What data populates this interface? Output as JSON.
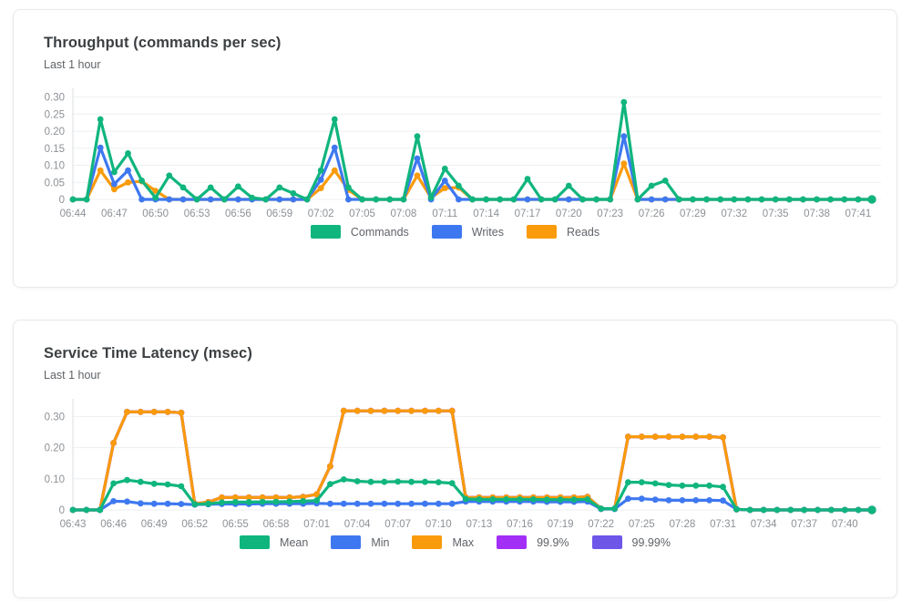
{
  "page": {
    "background": "#ffffff",
    "card_border": "#e7e9ec",
    "grid_color": "#edeff1",
    "axis_line_color": "#d9dcdf",
    "tick_text_color": "#8d9196",
    "legend_text_color": "#5f6368",
    "title_color": "#3c4043",
    "subtitle_color": "#5f6368"
  },
  "chart_data": [
    {
      "name": "throughput",
      "type": "line",
      "title": "Throughput (commands per sec)",
      "subtitle": "Last 1 hour",
      "xlabel": "",
      "ylabel": "",
      "ylim": [
        0,
        0.315
      ],
      "y_ticks": [
        0,
        0.05,
        0.1,
        0.15,
        0.2,
        0.25,
        0.3
      ],
      "y_tick_labels": [
        "0",
        "0.05",
        "0.10",
        "0.15",
        "0.20",
        "0.25",
        "0.30"
      ],
      "x_tick_interval": 3,
      "grid": true,
      "markers": true,
      "legend_position": "bottom",
      "x": [
        "06:44",
        "06:45",
        "06:46",
        "06:47",
        "06:48",
        "06:49",
        "06:50",
        "06:51",
        "06:52",
        "06:53",
        "06:54",
        "06:55",
        "06:56",
        "06:57",
        "06:58",
        "06:59",
        "07:00",
        "07:01",
        "07:02",
        "07:03",
        "07:04",
        "07:05",
        "07:06",
        "07:07",
        "07:08",
        "07:09",
        "07:10",
        "07:11",
        "07:12",
        "07:13",
        "07:14",
        "07:15",
        "07:16",
        "07:17",
        "07:18",
        "07:19",
        "07:20",
        "07:21",
        "07:22",
        "07:23",
        "07:24",
        "07:25",
        "07:26",
        "07:27",
        "07:28",
        "07:29",
        "07:30",
        "07:31",
        "07:32",
        "07:33",
        "07:34",
        "07:35",
        "07:36",
        "07:37",
        "07:38",
        "07:39",
        "07:40",
        "07:41",
        "07:42"
      ],
      "series": [
        {
          "name": "Commands",
          "color": "#10b57e",
          "values": [
            0,
            0,
            0.235,
            0.08,
            0.135,
            0.055,
            0.005,
            0.07,
            0.035,
            0,
            0.035,
            0,
            0.038,
            0.005,
            0,
            0.035,
            0.018,
            0,
            0.085,
            0.235,
            0.035,
            0,
            0,
            0,
            0,
            0.185,
            0.005,
            0.09,
            0.04,
            0,
            0,
            0,
            0,
            0.06,
            0,
            0,
            0.04,
            0,
            0,
            0,
            0.285,
            0,
            0.04,
            0.055,
            0,
            0,
            0,
            0,
            0,
            0,
            0,
            0,
            0,
            0,
            0,
            0,
            0,
            0,
            0
          ]
        },
        {
          "name": "Writes",
          "color": "#3e78f0",
          "values": [
            0,
            0,
            0.152,
            0.045,
            0.085,
            0,
            0,
            0,
            0,
            0,
            0,
            0,
            0,
            0,
            0,
            0,
            0,
            0,
            0.058,
            0.152,
            0,
            0,
            0,
            0,
            0,
            0.12,
            0,
            0.055,
            0,
            0,
            0,
            0,
            0,
            0,
            0,
            0,
            0,
            0,
            0,
            0,
            0.185,
            0,
            0,
            0,
            0,
            0,
            0,
            0,
            0,
            0,
            0,
            0,
            0,
            0,
            0,
            0,
            0,
            0,
            0
          ]
        },
        {
          "name": "Reads",
          "color": "#f99b0b",
          "values": [
            0,
            0,
            0.085,
            0.03,
            0.05,
            0.053,
            0.025,
            0,
            0,
            0,
            0,
            0,
            0,
            0,
            0,
            0,
            0,
            0,
            0.033,
            0.085,
            0.028,
            0,
            0,
            0,
            0,
            0.07,
            0.005,
            0.033,
            0.035,
            0,
            0,
            0,
            0,
            0,
            0,
            0,
            0,
            0,
            0,
            0,
            0.105,
            0,
            0,
            0,
            0,
            0,
            0,
            0,
            0,
            0,
            0,
            0,
            0,
            0,
            0,
            0,
            0,
            0,
            0
          ]
        }
      ]
    },
    {
      "name": "service-time-latency",
      "type": "line",
      "title": "Service Time Latency (msec)",
      "subtitle": "Last 1 hour",
      "xlabel": "",
      "ylabel": "",
      "ylim": [
        0,
        0.345
      ],
      "y_ticks": [
        0,
        0.1,
        0.2,
        0.3
      ],
      "y_tick_labels": [
        "0",
        "0.10",
        "0.20",
        "0.30"
      ],
      "x_tick_interval": 3,
      "grid": true,
      "markers": true,
      "legend_position": "bottom",
      "x": [
        "06:43",
        "06:44",
        "06:45",
        "06:46",
        "06:47",
        "06:48",
        "06:49",
        "06:50",
        "06:51",
        "06:52",
        "06:53",
        "06:54",
        "06:55",
        "06:56",
        "06:57",
        "06:58",
        "06:59",
        "07:00",
        "07:01",
        "07:02",
        "07:03",
        "07:04",
        "07:05",
        "07:06",
        "07:07",
        "07:08",
        "07:09",
        "07:10",
        "07:11",
        "07:12",
        "07:13",
        "07:14",
        "07:15",
        "07:16",
        "07:17",
        "07:18",
        "07:19",
        "07:20",
        "07:21",
        "07:22",
        "07:23",
        "07:24",
        "07:25",
        "07:26",
        "07:27",
        "07:28",
        "07:29",
        "07:30",
        "07:31",
        "07:32",
        "07:33",
        "07:34",
        "07:35",
        "07:36",
        "07:37",
        "07:38",
        "07:39",
        "07:40",
        "07:41",
        "07:42"
      ],
      "series": [
        {
          "name": "Mean",
          "color": "#10b57e",
          "values": [
            0,
            0,
            0,
            0.085,
            0.096,
            0.09,
            0.084,
            0.082,
            0.076,
            0.018,
            0.02,
            0.024,
            0.025,
            0.025,
            0.026,
            0.026,
            0.027,
            0.028,
            0.03,
            0.083,
            0.098,
            0.092,
            0.09,
            0.09,
            0.091,
            0.09,
            0.09,
            0.089,
            0.086,
            0.035,
            0.034,
            0.034,
            0.034,
            0.034,
            0.034,
            0.033,
            0.033,
            0.033,
            0.034,
            0.004,
            0.004,
            0.089,
            0.089,
            0.085,
            0.08,
            0.078,
            0.078,
            0.078,
            0.074,
            0.002,
            0,
            0,
            0,
            0,
            0,
            0,
            0,
            0,
            0,
            0
          ]
        },
        {
          "name": "Min",
          "color": "#3e78f0",
          "values": [
            0,
            0,
            0,
            0.028,
            0.027,
            0.021,
            0.02,
            0.02,
            0.019,
            0.017,
            0.018,
            0.019,
            0.019,
            0.019,
            0.02,
            0.02,
            0.02,
            0.02,
            0.021,
            0.02,
            0.02,
            0.02,
            0.02,
            0.02,
            0.02,
            0.02,
            0.02,
            0.02,
            0.02,
            0.027,
            0.027,
            0.027,
            0.027,
            0.027,
            0.027,
            0.026,
            0.026,
            0.026,
            0.027,
            0.003,
            0.003,
            0.036,
            0.036,
            0.033,
            0.031,
            0.031,
            0.031,
            0.031,
            0.03,
            0.002,
            0,
            0,
            0,
            0,
            0,
            0,
            0,
            0,
            0,
            0
          ]
        },
        {
          "name": "Max",
          "color": "#f99b0b",
          "values": [
            0,
            0,
            0,
            0.215,
            0.315,
            0.315,
            0.315,
            0.315,
            0.312,
            0.02,
            0.025,
            0.04,
            0.04,
            0.04,
            0.04,
            0.04,
            0.04,
            0.042,
            0.05,
            0.14,
            0.318,
            0.318,
            0.318,
            0.318,
            0.318,
            0.318,
            0.318,
            0.318,
            0.318,
            0.04,
            0.04,
            0.04,
            0.04,
            0.04,
            0.04,
            0.04,
            0.04,
            0.04,
            0.042,
            0.004,
            0.004,
            0.235,
            0.235,
            0.235,
            0.235,
            0.235,
            0.235,
            0.235,
            0.233,
            0.002,
            0,
            0,
            0,
            0,
            0,
            0,
            0,
            0,
            0,
            0
          ]
        },
        {
          "name": "99.9%",
          "color": "#a32ef5",
          "values": [
            0,
            0,
            0,
            0.215,
            0.315,
            0.315,
            0.315,
            0.315,
            0.312,
            0.02,
            0.025,
            0.04,
            0.04,
            0.04,
            0.04,
            0.04,
            0.04,
            0.042,
            0.05,
            0.14,
            0.318,
            0.318,
            0.318,
            0.318,
            0.318,
            0.318,
            0.318,
            0.318,
            0.318,
            0.04,
            0.04,
            0.04,
            0.04,
            0.04,
            0.04,
            0.04,
            0.04,
            0.04,
            0.042,
            0.004,
            0.004,
            0.235,
            0.235,
            0.235,
            0.235,
            0.235,
            0.235,
            0.235,
            0.233,
            0.002,
            0,
            0,
            0,
            0,
            0,
            0,
            0,
            0,
            0,
            0
          ]
        },
        {
          "name": "99.99%",
          "color": "#6e56e9",
          "values": [
            0,
            0,
            0,
            0.215,
            0.315,
            0.315,
            0.315,
            0.315,
            0.312,
            0.02,
            0.025,
            0.04,
            0.04,
            0.04,
            0.04,
            0.04,
            0.04,
            0.042,
            0.05,
            0.14,
            0.318,
            0.318,
            0.318,
            0.318,
            0.318,
            0.318,
            0.318,
            0.318,
            0.318,
            0.04,
            0.04,
            0.04,
            0.04,
            0.04,
            0.04,
            0.04,
            0.04,
            0.04,
            0.042,
            0.004,
            0.004,
            0.235,
            0.235,
            0.235,
            0.235,
            0.235,
            0.235,
            0.235,
            0.233,
            0.002,
            0,
            0,
            0,
            0,
            0,
            0,
            0,
            0,
            0,
            0
          ]
        }
      ]
    }
  ]
}
